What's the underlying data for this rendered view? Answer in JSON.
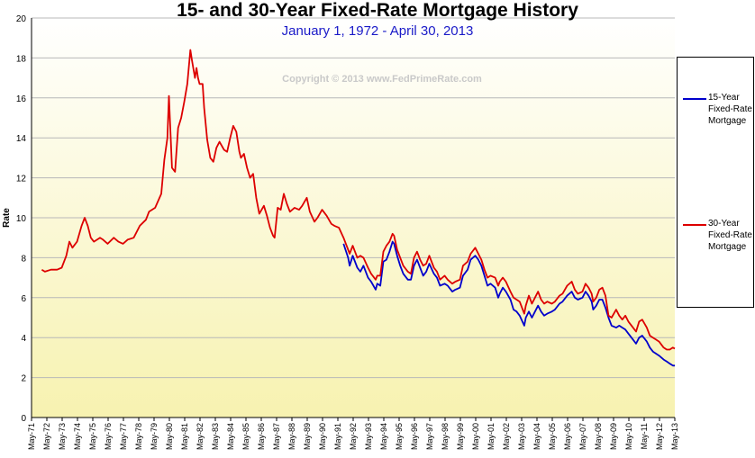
{
  "chart_data": {
    "type": "line",
    "title": "15- and 30-Year Fixed-Rate Mortgage History",
    "subtitle": "January 1, 1972 -  April 30, 2013",
    "watermark": "Copyright © 2013 www.FedPrimeRate.com",
    "ylabel": "Rate",
    "xlabel": "",
    "ylim": [
      0,
      20
    ],
    "yticks": [
      0,
      2,
      4,
      6,
      8,
      10,
      12,
      14,
      16,
      18,
      20
    ],
    "xlim": [
      1971.33,
      2013.33
    ],
    "xticks": [
      "May-71",
      "May-72",
      "May-73",
      "May-74",
      "May-75",
      "May-76",
      "May-77",
      "May-78",
      "May-79",
      "May-80",
      "May-81",
      "May-82",
      "May-83",
      "May-84",
      "May-85",
      "May-86",
      "May-87",
      "May-88",
      "May-89",
      "May-90",
      "May-91",
      "May-92",
      "May-93",
      "May-94",
      "May-95",
      "May-96",
      "May-97",
      "May-98",
      "May-99",
      "May-00",
      "May-01",
      "May-02",
      "May-03",
      "May-04",
      "May-05",
      "May-06",
      "May-07",
      "May-08",
      "May-09",
      "May-10",
      "May-11",
      "May-12",
      "May-13"
    ],
    "grid": true,
    "legend_position": "right",
    "series": [
      {
        "name": "15-Year Fixed-Rate Mortgage",
        "color": "#0000cc",
        "points": [
          [
            1991.7,
            8.7
          ],
          [
            1992.0,
            8.0
          ],
          [
            1992.1,
            7.6
          ],
          [
            1992.3,
            8.1
          ],
          [
            1992.6,
            7.5
          ],
          [
            1992.8,
            7.3
          ],
          [
            1993.0,
            7.6
          ],
          [
            1993.3,
            7.0
          ],
          [
            1993.5,
            6.8
          ],
          [
            1993.8,
            6.4
          ],
          [
            1993.9,
            6.7
          ],
          [
            1994.1,
            6.6
          ],
          [
            1994.3,
            7.8
          ],
          [
            1994.5,
            7.9
          ],
          [
            1994.7,
            8.3
          ],
          [
            1994.9,
            8.8
          ],
          [
            1995.0,
            8.7
          ],
          [
            1995.2,
            8.1
          ],
          [
            1995.4,
            7.6
          ],
          [
            1995.6,
            7.2
          ],
          [
            1995.9,
            6.9
          ],
          [
            1996.1,
            6.9
          ],
          [
            1996.3,
            7.6
          ],
          [
            1996.5,
            7.9
          ],
          [
            1996.7,
            7.5
          ],
          [
            1996.9,
            7.1
          ],
          [
            1997.1,
            7.3
          ],
          [
            1997.3,
            7.7
          ],
          [
            1997.6,
            7.2
          ],
          [
            1997.8,
            7.0
          ],
          [
            1998.0,
            6.6
          ],
          [
            1998.3,
            6.7
          ],
          [
            1998.5,
            6.6
          ],
          [
            1998.8,
            6.3
          ],
          [
            1999.0,
            6.4
          ],
          [
            1999.3,
            6.5
          ],
          [
            1999.5,
            7.1
          ],
          [
            1999.8,
            7.4
          ],
          [
            2000.0,
            7.9
          ],
          [
            2000.3,
            8.1
          ],
          [
            2000.5,
            7.9
          ],
          [
            2000.7,
            7.6
          ],
          [
            2000.9,
            7.1
          ],
          [
            2001.1,
            6.6
          ],
          [
            2001.3,
            6.7
          ],
          [
            2001.6,
            6.5
          ],
          [
            2001.8,
            6.0
          ],
          [
            2001.9,
            6.2
          ],
          [
            2002.1,
            6.5
          ],
          [
            2002.3,
            6.3
          ],
          [
            2002.6,
            5.9
          ],
          [
            2002.8,
            5.4
          ],
          [
            2003.0,
            5.3
          ],
          [
            2003.2,
            5.1
          ],
          [
            2003.5,
            4.6
          ],
          [
            2003.6,
            5.0
          ],
          [
            2003.8,
            5.3
          ],
          [
            2004.0,
            5.0
          ],
          [
            2004.2,
            5.3
          ],
          [
            2004.4,
            5.6
          ],
          [
            2004.6,
            5.3
          ],
          [
            2004.8,
            5.1
          ],
          [
            2005.0,
            5.2
          ],
          [
            2005.3,
            5.3
          ],
          [
            2005.5,
            5.4
          ],
          [
            2005.8,
            5.7
          ],
          [
            2006.0,
            5.8
          ],
          [
            2006.3,
            6.1
          ],
          [
            2006.6,
            6.3
          ],
          [
            2006.8,
            6.0
          ],
          [
            2007.0,
            5.9
          ],
          [
            2007.3,
            6.0
          ],
          [
            2007.5,
            6.3
          ],
          [
            2007.7,
            6.1
          ],
          [
            2007.9,
            5.8
          ],
          [
            2008.0,
            5.4
          ],
          [
            2008.2,
            5.6
          ],
          [
            2008.4,
            5.9
          ],
          [
            2008.6,
            5.9
          ],
          [
            2008.8,
            5.5
          ],
          [
            2009.0,
            5.0
          ],
          [
            2009.2,
            4.6
          ],
          [
            2009.5,
            4.5
          ],
          [
            2009.7,
            4.6
          ],
          [
            2009.9,
            4.5
          ],
          [
            2010.1,
            4.4
          ],
          [
            2010.3,
            4.2
          ],
          [
            2010.6,
            3.9
          ],
          [
            2010.8,
            3.7
          ],
          [
            2011.0,
            4.0
          ],
          [
            2011.2,
            4.1
          ],
          [
            2011.5,
            3.8
          ],
          [
            2011.7,
            3.5
          ],
          [
            2011.9,
            3.3
          ],
          [
            2012.1,
            3.2
          ],
          [
            2012.3,
            3.1
          ],
          [
            2012.6,
            2.9
          ],
          [
            2012.8,
            2.8
          ],
          [
            2013.0,
            2.7
          ],
          [
            2013.2,
            2.6
          ],
          [
            2013.33,
            2.6
          ]
        ]
      },
      {
        "name": "30-Year Fixed-Rate Mortgage",
        "color": "#dd0000",
        "points": [
          [
            1972.0,
            7.4
          ],
          [
            1972.2,
            7.3
          ],
          [
            1972.6,
            7.4
          ],
          [
            1973.0,
            7.4
          ],
          [
            1973.3,
            7.5
          ],
          [
            1973.6,
            8.1
          ],
          [
            1973.8,
            8.8
          ],
          [
            1974.0,
            8.5
          ],
          [
            1974.3,
            8.8
          ],
          [
            1974.6,
            9.6
          ],
          [
            1974.8,
            10.0
          ],
          [
            1975.0,
            9.6
          ],
          [
            1975.2,
            9.0
          ],
          [
            1975.4,
            8.8
          ],
          [
            1975.8,
            9.0
          ],
          [
            1976.0,
            8.9
          ],
          [
            1976.3,
            8.7
          ],
          [
            1976.7,
            9.0
          ],
          [
            1977.0,
            8.8
          ],
          [
            1977.3,
            8.7
          ],
          [
            1977.6,
            8.9
          ],
          [
            1978.0,
            9.0
          ],
          [
            1978.4,
            9.6
          ],
          [
            1978.8,
            9.9
          ],
          [
            1979.0,
            10.3
          ],
          [
            1979.4,
            10.5
          ],
          [
            1979.8,
            11.2
          ],
          [
            1980.0,
            12.9
          ],
          [
            1980.2,
            14.0
          ],
          [
            1980.3,
            16.1
          ],
          [
            1980.5,
            12.5
          ],
          [
            1980.7,
            12.3
          ],
          [
            1980.9,
            14.5
          ],
          [
            1981.1,
            15.0
          ],
          [
            1981.3,
            15.8
          ],
          [
            1981.5,
            16.7
          ],
          [
            1981.7,
            18.4
          ],
          [
            1981.8,
            17.9
          ],
          [
            1982.0,
            17.0
          ],
          [
            1982.1,
            17.5
          ],
          [
            1982.2,
            17.0
          ],
          [
            1982.3,
            16.7
          ],
          [
            1982.5,
            16.7
          ],
          [
            1982.6,
            15.5
          ],
          [
            1982.8,
            13.9
          ],
          [
            1983.0,
            13.0
          ],
          [
            1983.2,
            12.8
          ],
          [
            1983.4,
            13.5
          ],
          [
            1983.6,
            13.8
          ],
          [
            1983.9,
            13.4
          ],
          [
            1984.1,
            13.3
          ],
          [
            1984.3,
            14.0
          ],
          [
            1984.5,
            14.6
          ],
          [
            1984.7,
            14.3
          ],
          [
            1984.9,
            13.3
          ],
          [
            1985.0,
            13.0
          ],
          [
            1985.2,
            13.2
          ],
          [
            1985.4,
            12.5
          ],
          [
            1985.6,
            12.0
          ],
          [
            1985.8,
            12.2
          ],
          [
            1986.0,
            11.0
          ],
          [
            1986.2,
            10.2
          ],
          [
            1986.5,
            10.6
          ],
          [
            1986.7,
            10.1
          ],
          [
            1986.9,
            9.5
          ],
          [
            1987.1,
            9.1
          ],
          [
            1987.2,
            9.0
          ],
          [
            1987.4,
            10.5
          ],
          [
            1987.6,
            10.4
          ],
          [
            1987.8,
            11.2
          ],
          [
            1988.0,
            10.7
          ],
          [
            1988.2,
            10.3
          ],
          [
            1988.5,
            10.5
          ],
          [
            1988.8,
            10.4
          ],
          [
            1989.0,
            10.6
          ],
          [
            1989.3,
            11.0
          ],
          [
            1989.5,
            10.3
          ],
          [
            1989.8,
            9.8
          ],
          [
            1990.0,
            10.0
          ],
          [
            1990.3,
            10.4
          ],
          [
            1990.6,
            10.1
          ],
          [
            1990.9,
            9.7
          ],
          [
            1991.1,
            9.6
          ],
          [
            1991.4,
            9.5
          ],
          [
            1991.7,
            9.0
          ],
          [
            1992.0,
            8.4
          ],
          [
            1992.1,
            8.2
          ],
          [
            1992.3,
            8.6
          ],
          [
            1992.6,
            8.0
          ],
          [
            1992.8,
            8.1
          ],
          [
            1993.0,
            8.0
          ],
          [
            1993.3,
            7.5
          ],
          [
            1993.5,
            7.2
          ],
          [
            1993.8,
            6.9
          ],
          [
            1993.9,
            7.1
          ],
          [
            1994.1,
            7.1
          ],
          [
            1994.3,
            8.3
          ],
          [
            1994.5,
            8.6
          ],
          [
            1994.7,
            8.8
          ],
          [
            1994.9,
            9.2
          ],
          [
            1995.0,
            9.1
          ],
          [
            1995.2,
            8.4
          ],
          [
            1995.4,
            8.0
          ],
          [
            1995.6,
            7.6
          ],
          [
            1995.9,
            7.3
          ],
          [
            1996.1,
            7.2
          ],
          [
            1996.3,
            8.0
          ],
          [
            1996.5,
            8.3
          ],
          [
            1996.7,
            7.9
          ],
          [
            1996.9,
            7.6
          ],
          [
            1997.1,
            7.7
          ],
          [
            1997.3,
            8.1
          ],
          [
            1997.6,
            7.5
          ],
          [
            1997.8,
            7.3
          ],
          [
            1998.0,
            6.9
          ],
          [
            1998.3,
            7.1
          ],
          [
            1998.5,
            6.9
          ],
          [
            1998.8,
            6.7
          ],
          [
            1999.0,
            6.8
          ],
          [
            1999.3,
            6.9
          ],
          [
            1999.5,
            7.6
          ],
          [
            1999.8,
            7.8
          ],
          [
            2000.0,
            8.2
          ],
          [
            2000.3,
            8.5
          ],
          [
            2000.5,
            8.2
          ],
          [
            2000.7,
            7.9
          ],
          [
            2000.9,
            7.4
          ],
          [
            2001.1,
            7.0
          ],
          [
            2001.3,
            7.1
          ],
          [
            2001.6,
            7.0
          ],
          [
            2001.8,
            6.6
          ],
          [
            2001.9,
            6.8
          ],
          [
            2002.1,
            7.0
          ],
          [
            2002.3,
            6.8
          ],
          [
            2002.6,
            6.3
          ],
          [
            2002.8,
            6.0
          ],
          [
            2003.0,
            5.9
          ],
          [
            2003.2,
            5.8
          ],
          [
            2003.5,
            5.2
          ],
          [
            2003.6,
            5.6
          ],
          [
            2003.8,
            6.1
          ],
          [
            2004.0,
            5.7
          ],
          [
            2004.2,
            6.0
          ],
          [
            2004.4,
            6.3
          ],
          [
            2004.6,
            5.9
          ],
          [
            2004.8,
            5.7
          ],
          [
            2005.0,
            5.8
          ],
          [
            2005.3,
            5.7
          ],
          [
            2005.5,
            5.8
          ],
          [
            2005.8,
            6.1
          ],
          [
            2006.0,
            6.2
          ],
          [
            2006.3,
            6.6
          ],
          [
            2006.6,
            6.8
          ],
          [
            2006.8,
            6.4
          ],
          [
            2007.0,
            6.2
          ],
          [
            2007.3,
            6.3
          ],
          [
            2007.5,
            6.7
          ],
          [
            2007.7,
            6.5
          ],
          [
            2007.9,
            6.2
          ],
          [
            2008.0,
            5.8
          ],
          [
            2008.2,
            6.0
          ],
          [
            2008.4,
            6.4
          ],
          [
            2008.6,
            6.5
          ],
          [
            2008.8,
            6.1
          ],
          [
            2009.0,
            5.1
          ],
          [
            2009.2,
            5.0
          ],
          [
            2009.5,
            5.4
          ],
          [
            2009.7,
            5.1
          ],
          [
            2009.9,
            4.9
          ],
          [
            2010.1,
            5.1
          ],
          [
            2010.3,
            4.8
          ],
          [
            2010.6,
            4.5
          ],
          [
            2010.8,
            4.3
          ],
          [
            2011.0,
            4.8
          ],
          [
            2011.2,
            4.9
          ],
          [
            2011.5,
            4.5
          ],
          [
            2011.7,
            4.1
          ],
          [
            2011.9,
            4.0
          ],
          [
            2012.1,
            3.9
          ],
          [
            2012.3,
            3.8
          ],
          [
            2012.6,
            3.5
          ],
          [
            2012.8,
            3.4
          ],
          [
            2013.0,
            3.4
          ],
          [
            2013.2,
            3.5
          ],
          [
            2013.33,
            3.45
          ]
        ]
      }
    ]
  }
}
